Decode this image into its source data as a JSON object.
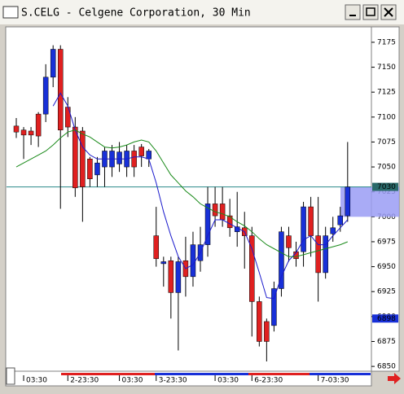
{
  "chart_data": {
    "type": "candlestick",
    "title": "S.CELG - Celgene Corporation, 30 Min",
    "categories": [
      null,
      "03:30",
      null,
      null,
      null,
      null,
      null,
      "2-23:30",
      null,
      null,
      null,
      null,
      null,
      null,
      "03:30",
      null,
      null,
      null,
      null,
      "3-23:30",
      null,
      null,
      null,
      null,
      null,
      null,
      null,
      "03:30",
      null,
      null,
      null,
      null,
      "6-23:30",
      null,
      null,
      null,
      null,
      null,
      null,
      null,
      null,
      "7-03:30",
      null,
      null,
      null,
      null
    ],
    "open": [
      7091,
      7087,
      7086,
      7103,
      7103,
      7140,
      7168,
      7110,
      7090,
      7086,
      7058,
      7042,
      7050,
      7050,
      7053,
      7050,
      7066,
      7070,
      7058,
      6981,
      6953,
      6956,
      6924,
      6956,
      6940,
      6956,
      6972,
      7013,
      7013,
      7001,
      6985,
      6989,
      6981,
      6915,
      6895,
      6891,
      6928,
      6981,
      6965,
      6965,
      7010,
      6981,
      6944,
      6983,
      6992,
      7001
    ],
    "high": [
      7099,
      7090,
      7090,
      7105,
      7153,
      7172,
      7172,
      7120,
      7100,
      7090,
      7060,
      7060,
      7070,
      7072,
      7075,
      7072,
      7072,
      7073,
      7068,
      7010,
      6960,
      6960,
      6960,
      6980,
      6985,
      6990,
      7030,
      7030,
      7030,
      7018,
      7025,
      7005,
      6990,
      6920,
      6898,
      6935,
      6990,
      6990,
      6975,
      7015,
      7020,
      7020,
      6990,
      7000,
      7010,
      7075
    ],
    "low": [
      7079,
      7058,
      7072,
      7070,
      7095,
      7130,
      7008,
      7080,
      7020,
      6995,
      7030,
      7030,
      7030,
      7040,
      7045,
      7040,
      7040,
      7050,
      7050,
      6950,
      6930,
      6898,
      6866,
      6920,
      6930,
      6945,
      6960,
      6990,
      6990,
      6980,
      6970,
      6948,
      6880,
      6870,
      6855,
      6885,
      6920,
      6955,
      6950,
      6950,
      6960,
      6915,
      6938,
      6975,
      6985,
      6995
    ],
    "close": [
      7085,
      7082,
      7082,
      7081,
      7140,
      7168,
      7087,
      7090,
      7029,
      7030,
      7038,
      7054,
      7066,
      7066,
      7065,
      7066,
      7050,
      7061,
      7066,
      6958,
      6955,
      6924,
      6955,
      6940,
      6972,
      6972,
      7013,
      7001,
      6997,
      6989,
      6990,
      6981,
      6915,
      6875,
      6875,
      6928,
      6985,
      6969,
      6958,
      7010,
      6981,
      6944,
      6981,
      6989,
      7001,
      7030
    ],
    "up_color": "#1830d8",
    "down_color": "#e02020",
    "series": [
      {
        "color": "#1a1acc",
        "values": [
          null,
          null,
          null,
          null,
          null,
          7111,
          7124,
          7111,
          7087,
          7070,
          7062,
          7058,
          7058,
          7058,
          7058,
          7058,
          7060,
          7060,
          7058,
          7034,
          7005,
          6981,
          6960,
          6948,
          6952,
          6964,
          6981,
          6997,
          6997,
          6993,
          6989,
          6985,
          6968,
          6944,
          6919,
          6918,
          6940,
          6956,
          6964,
          6977,
          6981,
          6972,
          6972,
          6981,
          6989,
          6997
        ]
      },
      {
        "color": "#1a8a1a",
        "values": [
          7050,
          7054,
          7058,
          7062,
          7066,
          7072,
          7079,
          7085,
          7087,
          7083,
          7080,
          7075,
          7070,
          7069,
          7070,
          7072,
          7075,
          7077,
          7075,
          7066,
          7054,
          7042,
          7034,
          7026,
          7020,
          7013,
          7009,
          7005,
          7003,
          7000,
          6995,
          6991,
          6985,
          6978,
          6972,
          6968,
          6964,
          6960,
          6960,
          6962,
          6964,
          6966,
          6968,
          6970,
          6972,
          6975
        ]
      }
    ],
    "ylim": [
      6846,
      7188
    ],
    "yticks": [
      7175,
      7150,
      7125,
      7100,
      7075,
      7050,
      7025,
      7000,
      6975,
      6950,
      6925,
      6900,
      6875,
      6850
    ],
    "last_price": 7030,
    "marked_price": 6898
  }
}
